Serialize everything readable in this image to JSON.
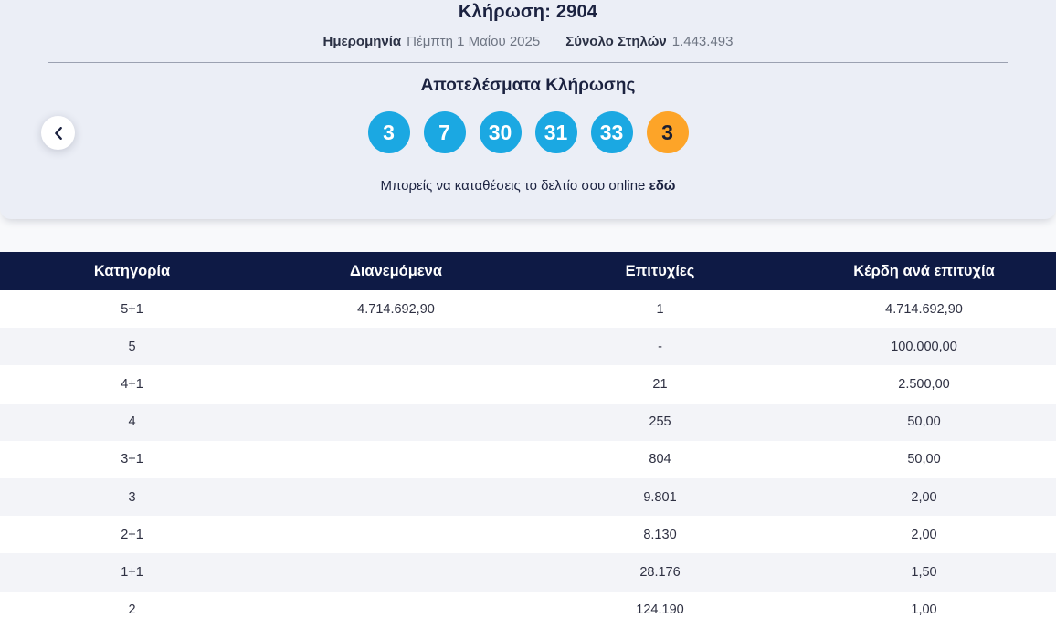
{
  "hero": {
    "draw_title": "Κλήρωση: 2904",
    "date_label": "Ημερομηνία",
    "date_value": "Πέμπτη 1 Μαΐου 2025",
    "columns_label": "Σύνολο Στηλών",
    "columns_value": "1.443.493",
    "results_heading": "Αποτελέσματα Κλήρωσης",
    "numbers": [
      "3",
      "7",
      "30",
      "31",
      "33"
    ],
    "joker": "3",
    "note_text": "Μπορείς να καταθέσεις το δελτίο σου online ",
    "note_link": "εδώ"
  },
  "colors": {
    "ball_blue": "#1BA8E2",
    "ball_orange": "#FDA428",
    "table_header_navy": "#0E1A45",
    "hero_background": "#EBEEF6"
  },
  "table": {
    "headers": [
      "Κατηγορία",
      "Διανεμόμενα",
      "Επιτυχίες",
      "Κέρδη ανά επιτυχία"
    ],
    "rows": [
      [
        "5+1",
        "4.714.692,90",
        "1",
        "4.714.692,90"
      ],
      [
        "5",
        "",
        "-",
        "100.000,00"
      ],
      [
        "4+1",
        "",
        "21",
        "2.500,00"
      ],
      [
        "4",
        "",
        "255",
        "50,00"
      ],
      [
        "3+1",
        "",
        "804",
        "50,00"
      ],
      [
        "3",
        "",
        "9.801",
        "2,00"
      ],
      [
        "2+1",
        "",
        "8.130",
        "2,00"
      ],
      [
        "1+1",
        "",
        "28.176",
        "1,50"
      ],
      [
        "2",
        "",
        "124.190",
        "1,00"
      ]
    ]
  }
}
